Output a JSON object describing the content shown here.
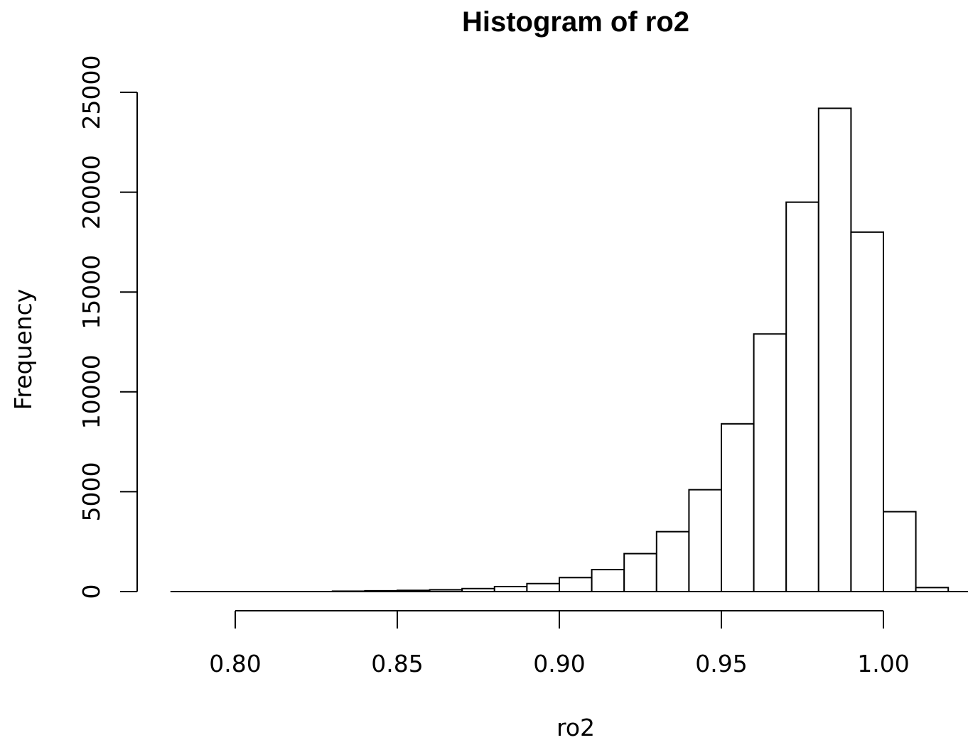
{
  "chart_data": {
    "type": "bar",
    "title": "Histogram of ro2",
    "xlabel": "ro2",
    "ylabel": "Frequency",
    "bin_width": 0.01,
    "bins": [
      {
        "start": 0.78,
        "end": 0.79,
        "count": 0
      },
      {
        "start": 0.79,
        "end": 0.8,
        "count": 2
      },
      {
        "start": 0.8,
        "end": 0.81,
        "count": 3
      },
      {
        "start": 0.81,
        "end": 0.82,
        "count": 5
      },
      {
        "start": 0.82,
        "end": 0.83,
        "count": 10
      },
      {
        "start": 0.83,
        "end": 0.84,
        "count": 20
      },
      {
        "start": 0.84,
        "end": 0.85,
        "count": 40
      },
      {
        "start": 0.85,
        "end": 0.86,
        "count": 60
      },
      {
        "start": 0.86,
        "end": 0.87,
        "count": 90
      },
      {
        "start": 0.87,
        "end": 0.88,
        "count": 150
      },
      {
        "start": 0.88,
        "end": 0.89,
        "count": 250
      },
      {
        "start": 0.89,
        "end": 0.9,
        "count": 400
      },
      {
        "start": 0.9,
        "end": 0.91,
        "count": 700
      },
      {
        "start": 0.91,
        "end": 0.92,
        "count": 1100
      },
      {
        "start": 0.92,
        "end": 0.93,
        "count": 1900
      },
      {
        "start": 0.93,
        "end": 0.94,
        "count": 3000
      },
      {
        "start": 0.94,
        "end": 0.95,
        "count": 5100
      },
      {
        "start": 0.95,
        "end": 0.96,
        "count": 8400
      },
      {
        "start": 0.96,
        "end": 0.97,
        "count": 12900
      },
      {
        "start": 0.97,
        "end": 0.98,
        "count": 19500
      },
      {
        "start": 0.98,
        "end": 0.99,
        "count": 24200
      },
      {
        "start": 0.99,
        "end": 1.0,
        "count": 18000
      },
      {
        "start": 1.0,
        "end": 1.01,
        "count": 4000
      },
      {
        "start": 1.01,
        "end": 1.02,
        "count": 200
      }
    ],
    "xlim": [
      0.78,
      1.025
    ],
    "ylim": [
      0,
      25000
    ],
    "x_ticks": [
      0.8,
      0.85,
      0.9,
      0.95,
      1.0
    ],
    "x_tick_labels": [
      "0.80",
      "0.85",
      "0.90",
      "0.95",
      "1.00"
    ],
    "y_ticks": [
      0,
      5000,
      10000,
      15000,
      20000,
      25000
    ],
    "y_tick_labels": [
      "0",
      "5000",
      "10000",
      "15000",
      "20000",
      "25000"
    ],
    "grid": false,
    "colors": {
      "bar_fill": "#ffffff",
      "bar_stroke": "#000000",
      "axis": "#000000"
    }
  }
}
